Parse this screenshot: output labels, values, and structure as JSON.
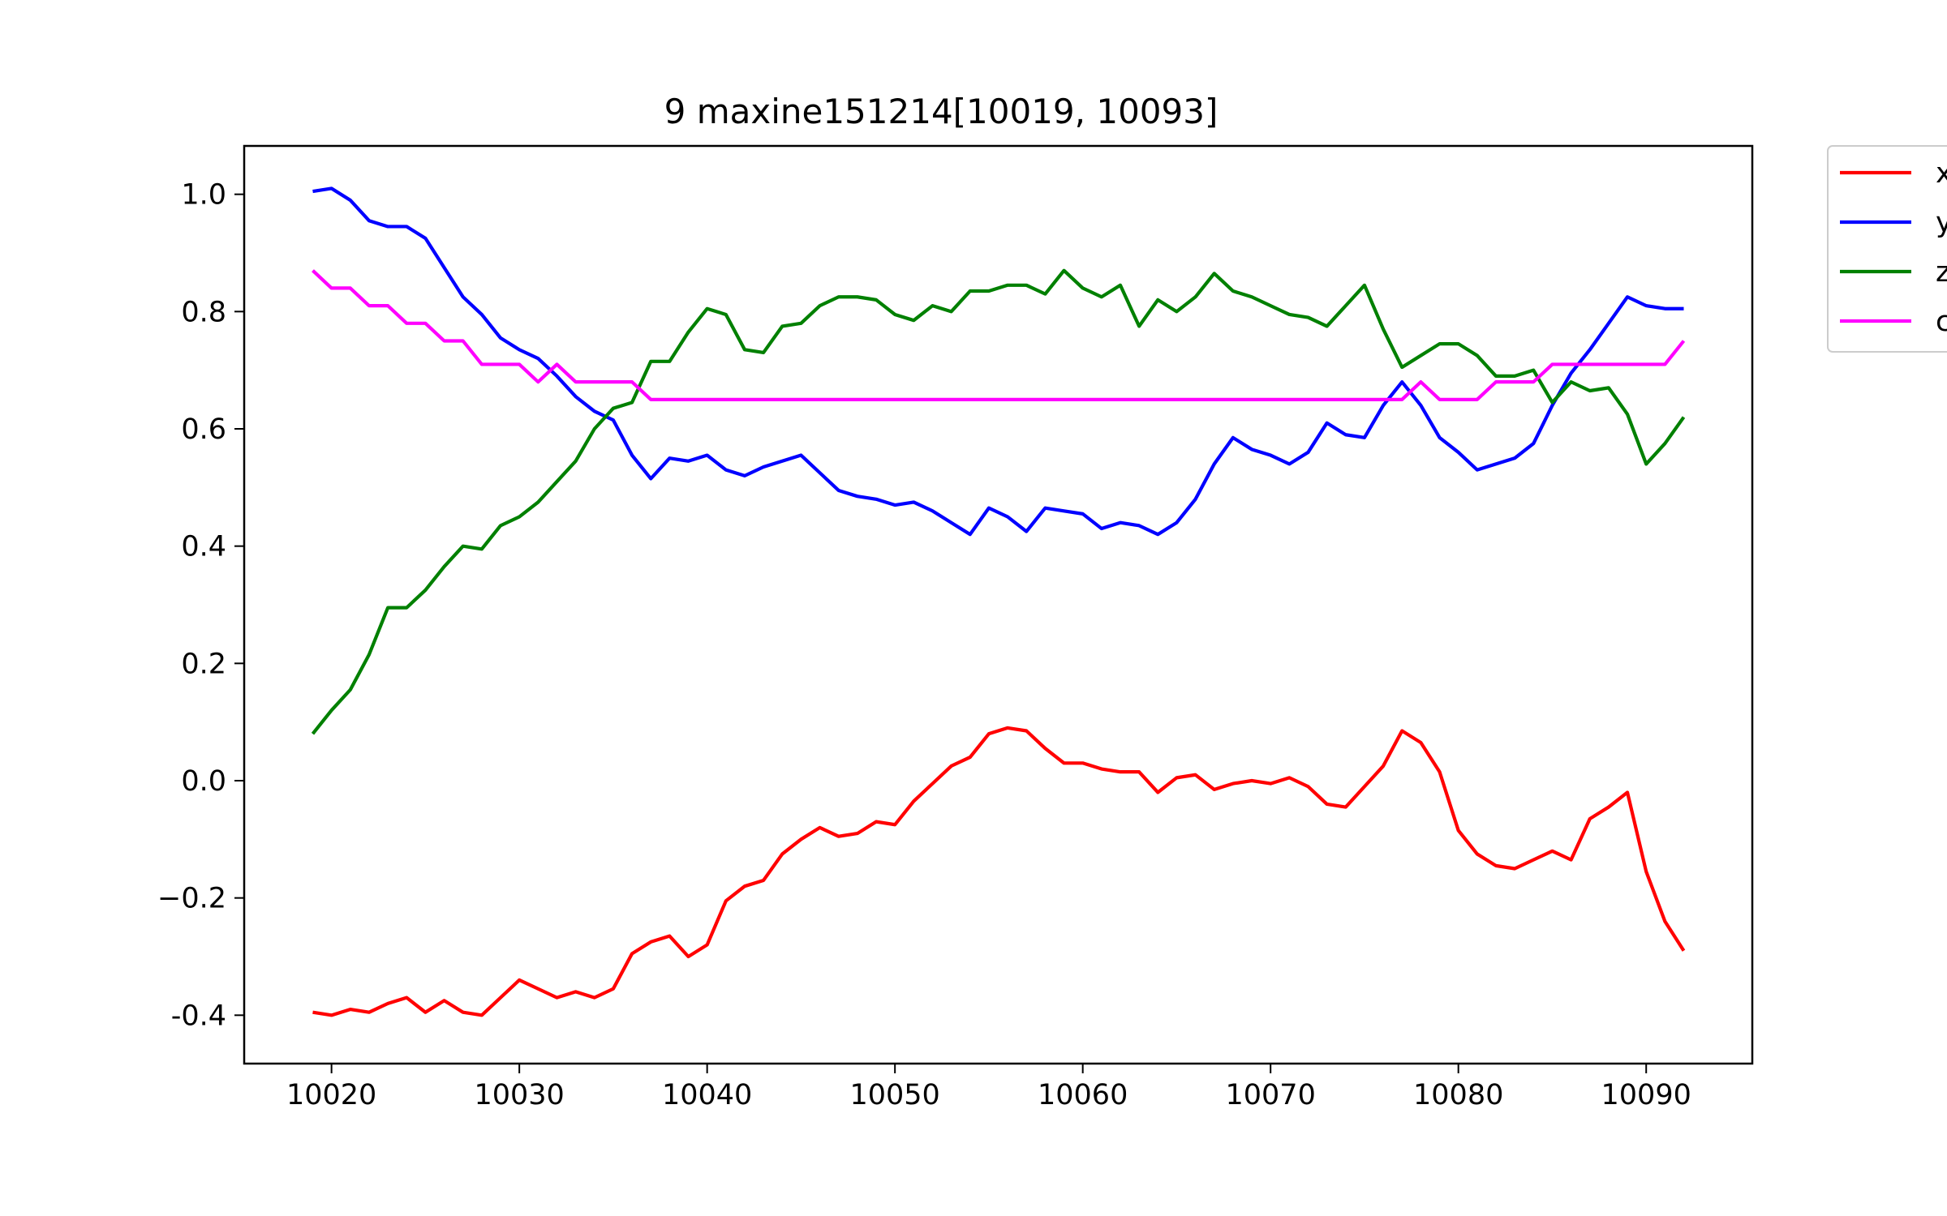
{
  "chart_data": {
    "type": "line",
    "title": "9 maxine151214[10019, 10093]",
    "xlabel": "",
    "ylabel": "",
    "xlim": [
      10015.35,
      10095.65
    ],
    "ylim": [
      -0.4825,
      1.0825
    ],
    "xticks": [
      10020,
      10030,
      10040,
      10050,
      10060,
      10070,
      10080,
      10090
    ],
    "yticks": [
      1.0,
      0.8,
      0.6,
      0.4,
      0.2,
      0.0,
      -0.2,
      -0.4
    ],
    "ytick_labels": [
      "1.0",
      "0.8",
      "0.6",
      "0.4",
      "0.2",
      "0.0",
      "−0.2",
      "-0.4"
    ],
    "grid": false,
    "legend_position": "outside-top-right",
    "x_start": 10019,
    "series": [
      {
        "name": "x",
        "color": "#ff0000",
        "values": [
          -0.395,
          -0.4,
          -0.39,
          -0.395,
          -0.38,
          -0.37,
          -0.395,
          -0.375,
          -0.395,
          -0.4,
          -0.37,
          -0.34,
          -0.355,
          -0.37,
          -0.36,
          -0.37,
          -0.355,
          -0.295,
          -0.275,
          -0.265,
          -0.3,
          -0.28,
          -0.205,
          -0.18,
          -0.17,
          -0.125,
          -0.1,
          -0.08,
          -0.095,
          -0.09,
          -0.07,
          -0.075,
          -0.035,
          -0.005,
          0.025,
          0.04,
          0.08,
          0.09,
          0.085,
          0.055,
          0.03,
          0.03,
          0.02,
          0.015,
          0.015,
          -0.02,
          0.005,
          0.01,
          -0.015,
          -0.005,
          0.0,
          -0.005,
          0.005,
          -0.01,
          -0.04,
          -0.045,
          -0.01,
          0.025,
          0.085,
          0.065,
          0.015,
          -0.085,
          -0.125,
          -0.145,
          -0.15,
          -0.135,
          -0.12,
          -0.135,
          -0.065,
          -0.045,
          -0.02,
          -0.155,
          -0.24,
          -0.29
        ]
      },
      {
        "name": "y",
        "color": "#0000ff",
        "values": [
          1.005,
          1.01,
          0.99,
          0.955,
          0.945,
          0.945,
          0.925,
          0.875,
          0.825,
          0.795,
          0.755,
          0.735,
          0.72,
          0.69,
          0.655,
          0.63,
          0.615,
          0.555,
          0.515,
          0.55,
          0.545,
          0.555,
          0.53,
          0.52,
          0.535,
          0.545,
          0.555,
          0.525,
          0.495,
          0.485,
          0.48,
          0.47,
          0.475,
          0.46,
          0.44,
          0.42,
          0.465,
          0.45,
          0.425,
          0.465,
          0.46,
          0.455,
          0.43,
          0.44,
          0.435,
          0.42,
          0.44,
          0.48,
          0.54,
          0.585,
          0.565,
          0.555,
          0.54,
          0.56,
          0.61,
          0.59,
          0.585,
          0.64,
          0.68,
          0.64,
          0.585,
          0.56,
          0.53,
          0.54,
          0.55,
          0.575,
          0.64,
          0.695,
          0.735,
          0.78,
          0.825,
          0.81,
          0.805,
          0.805
        ]
      },
      {
        "name": "z",
        "color": "#008000",
        "values": [
          0.08,
          0.12,
          0.155,
          0.215,
          0.295,
          0.295,
          0.325,
          0.365,
          0.4,
          0.395,
          0.435,
          0.45,
          0.475,
          0.51,
          0.545,
          0.6,
          0.635,
          0.645,
          0.715,
          0.715,
          0.765,
          0.805,
          0.795,
          0.735,
          0.73,
          0.775,
          0.78,
          0.81,
          0.825,
          0.825,
          0.82,
          0.795,
          0.785,
          0.81,
          0.8,
          0.835,
          0.835,
          0.845,
          0.845,
          0.83,
          0.87,
          0.84,
          0.825,
          0.845,
          0.775,
          0.82,
          0.8,
          0.825,
          0.865,
          0.835,
          0.825,
          0.81,
          0.795,
          0.79,
          0.775,
          0.81,
          0.845,
          0.77,
          0.705,
          0.725,
          0.745,
          0.745,
          0.725,
          0.69,
          0.69,
          0.7,
          0.645,
          0.68,
          0.665,
          0.67,
          0.625,
          0.54,
          0.575,
          0.62
        ]
      },
      {
        "name": "c",
        "color": "#ff00ff",
        "values": [
          0.87,
          0.84,
          0.84,
          0.81,
          0.81,
          0.78,
          0.78,
          0.75,
          0.75,
          0.71,
          0.71,
          0.71,
          0.68,
          0.71,
          0.68,
          0.68,
          0.68,
          0.68,
          0.65,
          0.65,
          0.65,
          0.65,
          0.65,
          0.65,
          0.65,
          0.65,
          0.65,
          0.65,
          0.65,
          0.65,
          0.65,
          0.65,
          0.65,
          0.65,
          0.65,
          0.65,
          0.65,
          0.65,
          0.65,
          0.65,
          0.65,
          0.65,
          0.65,
          0.65,
          0.65,
          0.65,
          0.65,
          0.65,
          0.65,
          0.65,
          0.65,
          0.65,
          0.65,
          0.65,
          0.65,
          0.65,
          0.65,
          0.65,
          0.65,
          0.68,
          0.65,
          0.65,
          0.65,
          0.68,
          0.68,
          0.68,
          0.71,
          0.71,
          0.71,
          0.71,
          0.71,
          0.71,
          0.71,
          0.75
        ]
      }
    ]
  }
}
